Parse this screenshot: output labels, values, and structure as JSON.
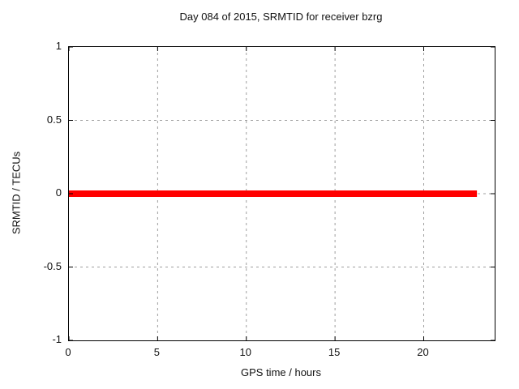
{
  "chart_data": {
    "type": "line",
    "title": "Day 084 of 2015, SRMTID for receiver bzrg",
    "xlabel": "GPS time / hours",
    "ylabel": "SRMTID / TECUs",
    "xlim": [
      0,
      24
    ],
    "ylim": [
      -1,
      1
    ],
    "xticks": [
      0,
      5,
      10,
      15,
      20
    ],
    "yticks": [
      -1,
      -0.5,
      0,
      0.5,
      1
    ],
    "grid": true,
    "legend": "none",
    "colors": {
      "background": "#ffffff",
      "border": "#000000",
      "grid": "#9e9e9e",
      "text": "#111111",
      "series": "#ff0000"
    },
    "series": [
      {
        "name": "SRMTID",
        "color": "#ff0000",
        "line_width": 8,
        "x": [
          0,
          23
        ],
        "y": [
          0,
          0
        ]
      }
    ]
  }
}
